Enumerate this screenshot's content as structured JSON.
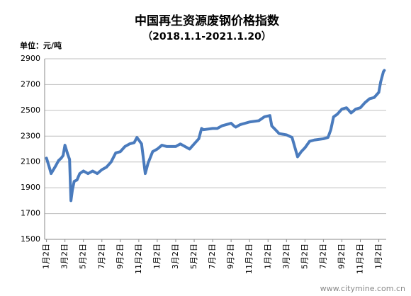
{
  "chart_data": {
    "type": "line",
    "title": "中国再生资源废钢价格指数",
    "subtitle": "（2018.1.1-2021.1.20）",
    "y_label": "单位：元/吨",
    "watermark": "www.citymine.com.cn",
    "xlim": [
      -0.2,
      36.8
    ],
    "xticks": [
      {
        "value": 0,
        "label": "1月2日"
      },
      {
        "value": 2,
        "label": "3月2日"
      },
      {
        "value": 4,
        "label": "5月2日"
      },
      {
        "value": 6,
        "label": "7月2日"
      },
      {
        "value": 8,
        "label": "9月2日"
      },
      {
        "value": 10,
        "label": "11月2日"
      },
      {
        "value": 12,
        "label": "1月2日"
      },
      {
        "value": 14,
        "label": "3月2日"
      },
      {
        "value": 16,
        "label": "5月2日"
      },
      {
        "value": 18,
        "label": "7月2日"
      },
      {
        "value": 20,
        "label": "9月2日"
      },
      {
        "value": 22,
        "label": "11月2日"
      },
      {
        "value": 24,
        "label": "1月2日"
      },
      {
        "value": 26,
        "label": "3月2日"
      },
      {
        "value": 28,
        "label": "5月2日"
      },
      {
        "value": 30,
        "label": "7月2日"
      },
      {
        "value": 32,
        "label": "9月2日"
      },
      {
        "value": 34,
        "label": "11月2日"
      },
      {
        "value": 36,
        "label": "1月2日"
      }
    ],
    "ylim": [
      1500,
      2900
    ],
    "yticks": [
      1500,
      1700,
      1900,
      2100,
      2300,
      2500,
      2700,
      2900
    ],
    "grid": true,
    "series": [
      {
        "color": "#4a7bbd",
        "x": [
          0,
          0.3,
          0.5,
          1.0,
          1.3,
          1.6,
          1.8,
          2.0,
          2.3,
          2.5,
          2.65,
          2.8,
          3.0,
          3.3,
          3.6,
          4.0,
          4.5,
          5.0,
          5.5,
          6.0,
          6.5,
          7.0,
          7.5,
          8.0,
          8.5,
          9.0,
          9.5,
          9.8,
          10.3,
          10.7,
          11.0,
          11.5,
          12.0,
          12.5,
          13.0,
          14.0,
          14.5,
          15.0,
          15.5,
          16.0,
          16.5,
          16.8,
          17.0,
          18.0,
          18.5,
          19.0,
          20.0,
          20.3,
          20.5,
          21.0,
          22.0,
          23.0,
          23.6,
          24.2,
          24.4,
          24.8,
          25.2,
          26.0,
          26.6,
          27.2,
          27.6,
          28.0,
          28.5,
          29.0,
          30.0,
          30.5,
          30.8,
          31.1,
          31.5,
          32.0,
          32.5,
          33.0,
          33.5,
          34.0,
          34.5,
          35.0,
          35.5,
          36.0,
          36.2,
          36.5,
          36.6
        ],
        "values": [
          2130,
          2060,
          2010,
          2070,
          2110,
          2130,
          2150,
          2230,
          2160,
          2120,
          1800,
          1880,
          1950,
          1960,
          2010,
          2030,
          2010,
          2030,
          2010,
          2040,
          2060,
          2100,
          2170,
          2180,
          2220,
          2240,
          2250,
          2290,
          2240,
          2010,
          2090,
          2180,
          2200,
          2230,
          2220,
          2220,
          2240,
          2220,
          2200,
          2240,
          2280,
          2360,
          2350,
          2360,
          2360,
          2380,
          2400,
          2380,
          2370,
          2390,
          2410,
          2420,
          2450,
          2460,
          2380,
          2350,
          2320,
          2310,
          2290,
          2140,
          2180,
          2210,
          2260,
          2270,
          2280,
          2290,
          2350,
          2450,
          2470,
          2510,
          2520,
          2480,
          2510,
          2520,
          2560,
          2590,
          2600,
          2640,
          2720,
          2800,
          2810
        ]
      }
    ]
  }
}
